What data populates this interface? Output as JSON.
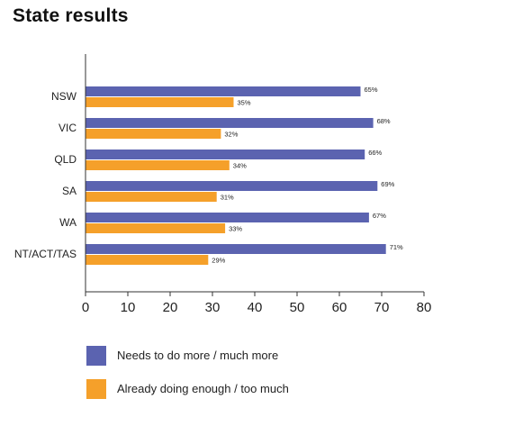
{
  "title": "State results",
  "chart_data": {
    "type": "bar",
    "orientation": "horizontal",
    "categories": [
      "NSW",
      "VIC",
      "QLD",
      "SA",
      "WA",
      "NT/ACT/TAS"
    ],
    "series": [
      {
        "name": "Needs to do more / much more",
        "color": "#5b63b0",
        "values": [
          65,
          68,
          66,
          69,
          67,
          71
        ],
        "labels": [
          "65%",
          "68%",
          "66%",
          "69%",
          "67%",
          "71%"
        ]
      },
      {
        "name": "Already doing enough / too much",
        "color": "#f5a02a",
        "values": [
          35,
          32,
          34,
          31,
          33,
          29
        ],
        "labels": [
          "35%",
          "32%",
          "34%",
          "31%",
          "33%",
          "29%"
        ]
      }
    ],
    "xlim": [
      0,
      80
    ],
    "xticks": [
      "0",
      "10",
      "20",
      "30",
      "40",
      "50",
      "60",
      "70",
      "80"
    ],
    "grid": false,
    "legend_position": "bottom"
  }
}
